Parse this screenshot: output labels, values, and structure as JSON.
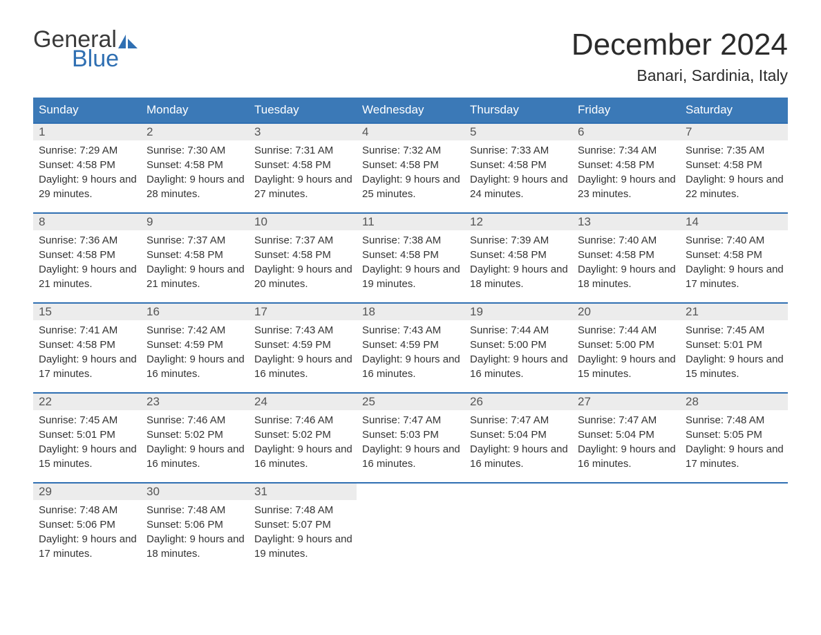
{
  "logo": {
    "text1": "General",
    "text2": "Blue",
    "text1_color": "#3a3a3a",
    "text2_color": "#2f6fb2",
    "icon_fill": "#2f6fb2"
  },
  "title": "December 2024",
  "location": "Banari, Sardinia, Italy",
  "colors": {
    "header_bg": "#3b79b7",
    "header_text": "#ffffff",
    "daynum_bg": "#ececec",
    "daynum_text": "#555555",
    "week_border": "#2f6fb2",
    "body_text": "#333333",
    "page_bg": "#ffffff"
  },
  "typography": {
    "title_fontsize": 44,
    "location_fontsize": 23,
    "weekday_fontsize": 17,
    "daynum_fontsize": 17,
    "body_fontsize": 15
  },
  "weekdays": [
    "Sunday",
    "Monday",
    "Tuesday",
    "Wednesday",
    "Thursday",
    "Friday",
    "Saturday"
  ],
  "labels": {
    "sunrise": "Sunrise:",
    "sunset": "Sunset:",
    "daylight": "Daylight:"
  },
  "weeks": [
    [
      {
        "n": "1",
        "sr": "7:29 AM",
        "ss": "4:58 PM",
        "dl": "9 hours and 29 minutes."
      },
      {
        "n": "2",
        "sr": "7:30 AM",
        "ss": "4:58 PM",
        "dl": "9 hours and 28 minutes."
      },
      {
        "n": "3",
        "sr": "7:31 AM",
        "ss": "4:58 PM",
        "dl": "9 hours and 27 minutes."
      },
      {
        "n": "4",
        "sr": "7:32 AM",
        "ss": "4:58 PM",
        "dl": "9 hours and 25 minutes."
      },
      {
        "n": "5",
        "sr": "7:33 AM",
        "ss": "4:58 PM",
        "dl": "9 hours and 24 minutes."
      },
      {
        "n": "6",
        "sr": "7:34 AM",
        "ss": "4:58 PM",
        "dl": "9 hours and 23 minutes."
      },
      {
        "n": "7",
        "sr": "7:35 AM",
        "ss": "4:58 PM",
        "dl": "9 hours and 22 minutes."
      }
    ],
    [
      {
        "n": "8",
        "sr": "7:36 AM",
        "ss": "4:58 PM",
        "dl": "9 hours and 21 minutes."
      },
      {
        "n": "9",
        "sr": "7:37 AM",
        "ss": "4:58 PM",
        "dl": "9 hours and 21 minutes."
      },
      {
        "n": "10",
        "sr": "7:37 AM",
        "ss": "4:58 PM",
        "dl": "9 hours and 20 minutes."
      },
      {
        "n": "11",
        "sr": "7:38 AM",
        "ss": "4:58 PM",
        "dl": "9 hours and 19 minutes."
      },
      {
        "n": "12",
        "sr": "7:39 AM",
        "ss": "4:58 PM",
        "dl": "9 hours and 18 minutes."
      },
      {
        "n": "13",
        "sr": "7:40 AM",
        "ss": "4:58 PM",
        "dl": "9 hours and 18 minutes."
      },
      {
        "n": "14",
        "sr": "7:40 AM",
        "ss": "4:58 PM",
        "dl": "9 hours and 17 minutes."
      }
    ],
    [
      {
        "n": "15",
        "sr": "7:41 AM",
        "ss": "4:58 PM",
        "dl": "9 hours and 17 minutes."
      },
      {
        "n": "16",
        "sr": "7:42 AM",
        "ss": "4:59 PM",
        "dl": "9 hours and 16 minutes."
      },
      {
        "n": "17",
        "sr": "7:43 AM",
        "ss": "4:59 PM",
        "dl": "9 hours and 16 minutes."
      },
      {
        "n": "18",
        "sr": "7:43 AM",
        "ss": "4:59 PM",
        "dl": "9 hours and 16 minutes."
      },
      {
        "n": "19",
        "sr": "7:44 AM",
        "ss": "5:00 PM",
        "dl": "9 hours and 16 minutes."
      },
      {
        "n": "20",
        "sr": "7:44 AM",
        "ss": "5:00 PM",
        "dl": "9 hours and 15 minutes."
      },
      {
        "n": "21",
        "sr": "7:45 AM",
        "ss": "5:01 PM",
        "dl": "9 hours and 15 minutes."
      }
    ],
    [
      {
        "n": "22",
        "sr": "7:45 AM",
        "ss": "5:01 PM",
        "dl": "9 hours and 15 minutes."
      },
      {
        "n": "23",
        "sr": "7:46 AM",
        "ss": "5:02 PM",
        "dl": "9 hours and 16 minutes."
      },
      {
        "n": "24",
        "sr": "7:46 AM",
        "ss": "5:02 PM",
        "dl": "9 hours and 16 minutes."
      },
      {
        "n": "25",
        "sr": "7:47 AM",
        "ss": "5:03 PM",
        "dl": "9 hours and 16 minutes."
      },
      {
        "n": "26",
        "sr": "7:47 AM",
        "ss": "5:04 PM",
        "dl": "9 hours and 16 minutes."
      },
      {
        "n": "27",
        "sr": "7:47 AM",
        "ss": "5:04 PM",
        "dl": "9 hours and 16 minutes."
      },
      {
        "n": "28",
        "sr": "7:48 AM",
        "ss": "5:05 PM",
        "dl": "9 hours and 17 minutes."
      }
    ],
    [
      {
        "n": "29",
        "sr": "7:48 AM",
        "ss": "5:06 PM",
        "dl": "9 hours and 17 minutes."
      },
      {
        "n": "30",
        "sr": "7:48 AM",
        "ss": "5:06 PM",
        "dl": "9 hours and 18 minutes."
      },
      {
        "n": "31",
        "sr": "7:48 AM",
        "ss": "5:07 PM",
        "dl": "9 hours and 19 minutes."
      },
      null,
      null,
      null,
      null
    ]
  ]
}
